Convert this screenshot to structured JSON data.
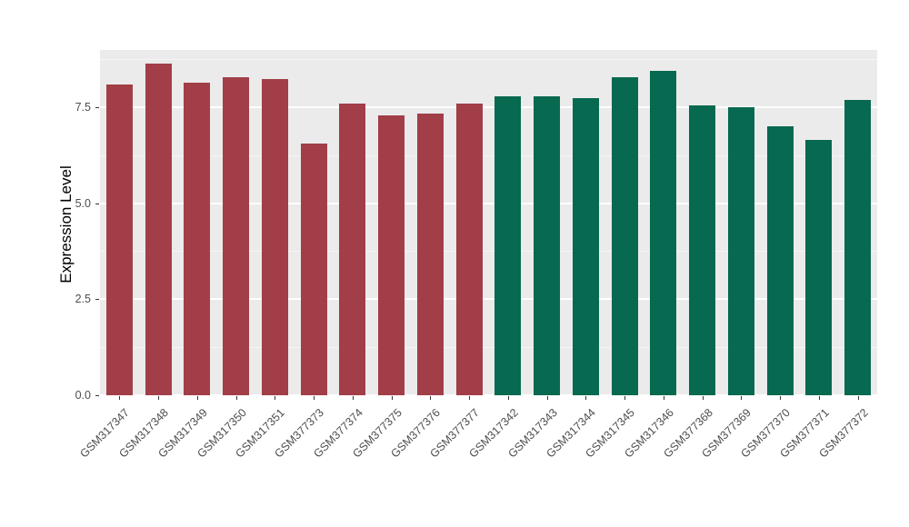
{
  "chart_data": {
    "type": "bar",
    "title": "",
    "xlabel": "",
    "ylabel": "Expression Level",
    "ylim": [
      0,
      9.0
    ],
    "yticks": [
      "0.0",
      "2.5",
      "5.0",
      "7.5"
    ],
    "ytick_values": [
      0.0,
      2.5,
      5.0,
      7.5
    ],
    "minor_tick_values": [
      1.25,
      3.75,
      6.25,
      8.75
    ],
    "grid": "on",
    "legend": "none",
    "panel_background": "#EBEBEB",
    "categories": [
      "GSM317347",
      "GSM317348",
      "GSM317349",
      "GSM317350",
      "GSM317351",
      "GSM377373",
      "GSM377374",
      "GSM377375",
      "GSM377376",
      "GSM377377",
      "GSM317342",
      "GSM317343",
      "GSM317344",
      "GSM317345",
      "GSM317346",
      "GSM377368",
      "GSM377369",
      "GSM377370",
      "GSM377371",
      "GSM377372"
    ],
    "values": [
      8.1,
      8.65,
      8.15,
      8.3,
      8.25,
      6.55,
      7.6,
      7.3,
      7.35,
      7.6,
      7.8,
      7.8,
      7.75,
      8.3,
      8.45,
      7.55,
      7.5,
      7.0,
      6.65,
      7.7
    ],
    "colors": [
      "#A23E48",
      "#A23E48",
      "#A23E48",
      "#A23E48",
      "#A23E48",
      "#A23E48",
      "#A23E48",
      "#A23E48",
      "#A23E48",
      "#A23E48",
      "#07694F",
      "#07694F",
      "#07694F",
      "#07694F",
      "#07694F",
      "#07694F",
      "#07694F",
      "#07694F",
      "#07694F",
      "#07694F"
    ],
    "group_colors": {
      "group1": "#A23E48",
      "group2": "#07694F"
    }
  }
}
